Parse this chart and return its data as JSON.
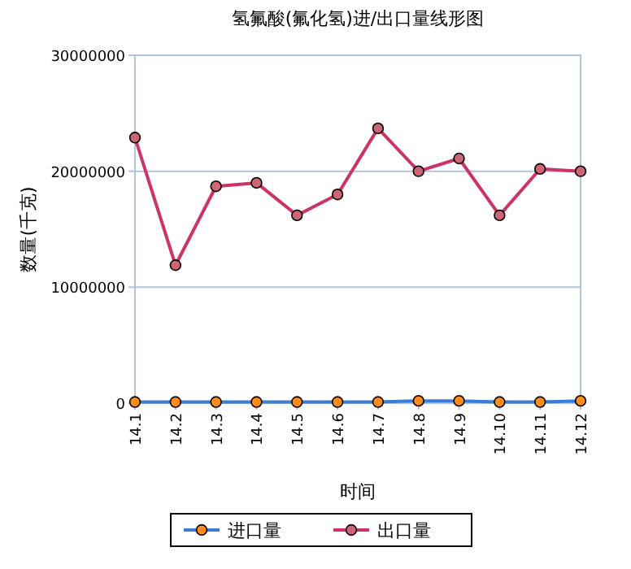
{
  "chart_data": {
    "type": "line",
    "title": "氢氟酸(氟化氢)进/出口量线形图",
    "xlabel": "时间",
    "ylabel": "数量(千克)",
    "categories": [
      "14.1",
      "14.2",
      "14.3",
      "14.4",
      "14.5",
      "14.6",
      "14.7",
      "14.8",
      "14.9",
      "14.10",
      "14.11",
      "14.12"
    ],
    "series": [
      {
        "name": "进口量",
        "color": "#3a7dd8",
        "values": [
          100000,
          100000,
          100000,
          100000,
          100000,
          100000,
          100000,
          200000,
          200000,
          100000,
          100000,
          200000
        ]
      },
      {
        "name": "出口量",
        "color": "#cc3366",
        "values": [
          22900000,
          11900000,
          18700000,
          19000000,
          16200000,
          18000000,
          23700000,
          20000000,
          21100000,
          16200000,
          20200000,
          20000000
        ]
      }
    ],
    "ylim": [
      0,
      30000000
    ],
    "yticks": [
      0,
      10000000,
      20000000,
      30000000
    ],
    "grid": "y",
    "legend": "bottom",
    "marker": "circle",
    "line_style": "solid"
  }
}
